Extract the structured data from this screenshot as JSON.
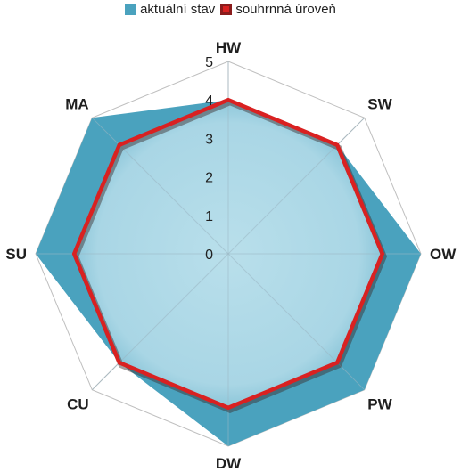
{
  "chart_data": {
    "type": "radar",
    "categories": [
      "HW",
      "SW",
      "OW",
      "PW",
      "DW",
      "CU",
      "SU",
      "MA"
    ],
    "radial_ticks": [
      "0",
      "1",
      "2",
      "3",
      "4",
      "5"
    ],
    "rlim": [
      0,
      5
    ],
    "series": [
      {
        "name": "aktuální stav",
        "style": "area",
        "values": [
          4,
          4,
          5,
          5,
          5,
          4,
          5,
          5
        ]
      },
      {
        "name": "souhrnná úroveň",
        "style": "line",
        "values": [
          4,
          4,
          4,
          4,
          4,
          4,
          4,
          4
        ]
      }
    ],
    "legend_position": "top",
    "colors": {
      "area_fill": "#4aa2be",
      "area_inner_highlight": "#a9d8e6",
      "line": "#d92121",
      "grid": "#bfbfbf",
      "label_text": "#1f1f1f"
    }
  }
}
